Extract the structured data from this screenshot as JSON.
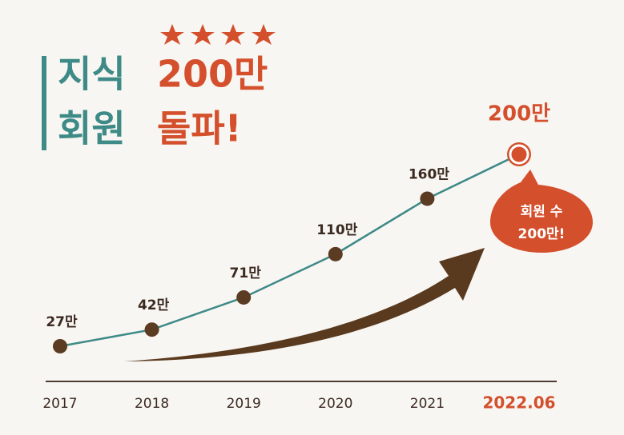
{
  "chart_data": {
    "type": "line",
    "title_lines": [
      [
        "지식",
        "200만"
      ],
      [
        "회원",
        "돌파!"
      ]
    ],
    "categories": [
      "2017",
      "2018",
      "2019",
      "2020",
      "2021",
      "2022.06"
    ],
    "values": [
      27,
      42,
      71,
      110,
      160,
      200
    ],
    "value_labels": [
      "27만",
      "42만",
      "71만",
      "110만",
      "160만",
      "200만"
    ],
    "annotation": [
      "회원 수",
      "200만!"
    ],
    "line_color": "#3e8a87",
    "marker_color": "#5b3b22",
    "highlight_color": "#d4502d"
  }
}
